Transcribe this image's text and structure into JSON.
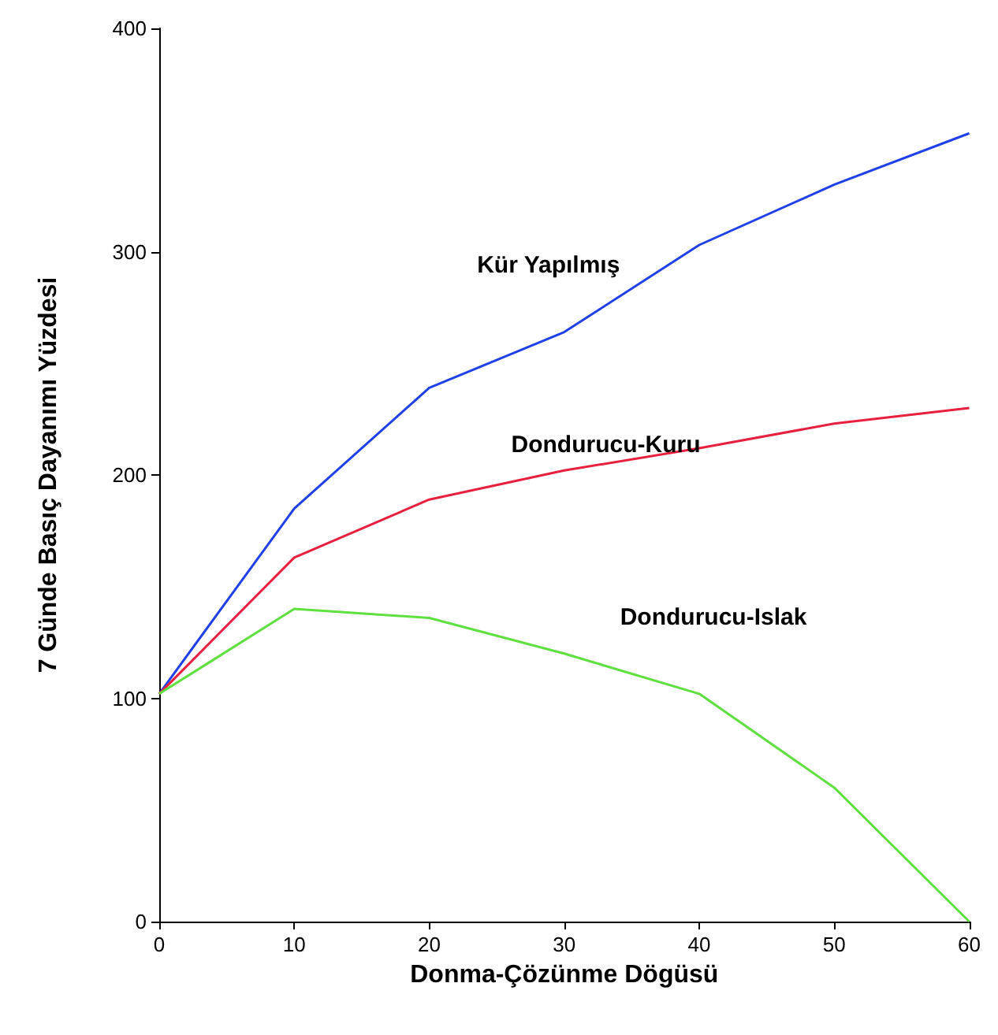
{
  "chart_data": {
    "type": "line",
    "xlabel": "Donma-Çözünme Dögüsü",
    "ylabel": "7 Günde Basıç Dayanımı Yüzdesi",
    "x": [
      0,
      10,
      20,
      30,
      40,
      50,
      60
    ],
    "series": [
      {
        "name": "Kür Yapılmış",
        "color": "#2040e8",
        "values": [
          102,
          185,
          239,
          264,
          303,
          330,
          353
        ]
      },
      {
        "name": "Dondurucu-Kuru",
        "color": "#e82040",
        "values": [
          102,
          163,
          189,
          202,
          212,
          223,
          230
        ]
      },
      {
        "name": "Dondurucu-Islak",
        "color": "#60e040",
        "values": [
          102,
          140,
          136,
          120,
          102,
          60,
          0
        ]
      }
    ],
    "xlim": [
      0,
      60
    ],
    "xticks": [
      0,
      10,
      20,
      30,
      40,
      50,
      60
    ],
    "ylim": [
      0,
      400
    ],
    "yticks": [
      0,
      100,
      200,
      300,
      400
    ],
    "grid": false,
    "legend": false,
    "marker": "none",
    "line_style": "solid"
  }
}
